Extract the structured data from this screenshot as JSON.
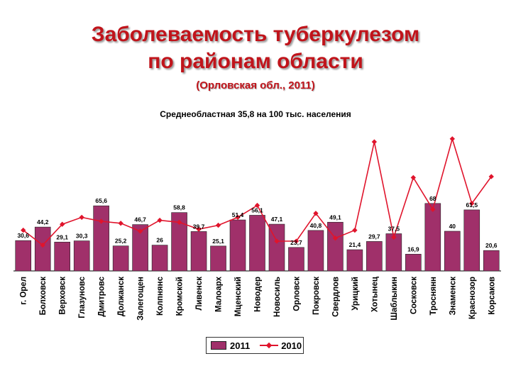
{
  "title_line1": "Заболеваемость туберкулезом",
  "title_line2": "по районам области",
  "subtitle": "(Орловская обл., 2011)",
  "caption": "Среднеобластная 35,8 на 100 тыс. населения",
  "colors": {
    "title": "#c0141b",
    "bar": "#a0306a",
    "line": "#e0142c"
  },
  "chart_data": {
    "type": "bar",
    "categories": [
      "г. Орел",
      "Болховск",
      "Верховск",
      "Глазуновс",
      "Дмитровс",
      "Должанск",
      "Залегощен",
      "Колпнянс",
      "Кромской",
      "Ливенск",
      "Малоарх",
      "Мценский",
      "Новодер",
      "Новосиль",
      "Орловск",
      "Покровск",
      "Свердлов",
      "Урицкий",
      "Хотынец",
      "Шаблыкин",
      "Сосковск",
      "Троснянн",
      "Знаменск",
      "Краснозор",
      "Корсаков"
    ],
    "series": [
      {
        "name": "2011",
        "type": "bar",
        "values": [
          30.6,
          44.2,
          29.1,
          30.3,
          65.6,
          25.2,
          46.7,
          26,
          58.8,
          39.7,
          25.1,
          51.4,
          56.1,
          47.1,
          23.7,
          40.8,
          49.1,
          21.4,
          29.7,
          37.5,
          16.9,
          68,
          40,
          61.5,
          20.6
        ],
        "labels": [
          "30,6",
          "44,2",
          "29,1",
          "30,3",
          "65,6",
          "25,2",
          "46,7",
          "26",
          "58,8",
          "39,7",
          "25,1",
          "51,4",
          "56,1",
          "47,1",
          "23,7",
          "40,8",
          "49,1",
          "21,4",
          "29,7",
          "37,5",
          "16,9",
          "68",
          "40",
          "61,5",
          "20,6"
        ]
      },
      {
        "name": "2010",
        "type": "line",
        "values": [
          41,
          26,
          47,
          54,
          50,
          48,
          40,
          51,
          49,
          42,
          46,
          54,
          66,
          30,
          30,
          58,
          33,
          41,
          130,
          34,
          94,
          62,
          133,
          68,
          95
        ]
      }
    ],
    "ylim": [
      0,
      140
    ],
    "legend_position": "bottom"
  }
}
